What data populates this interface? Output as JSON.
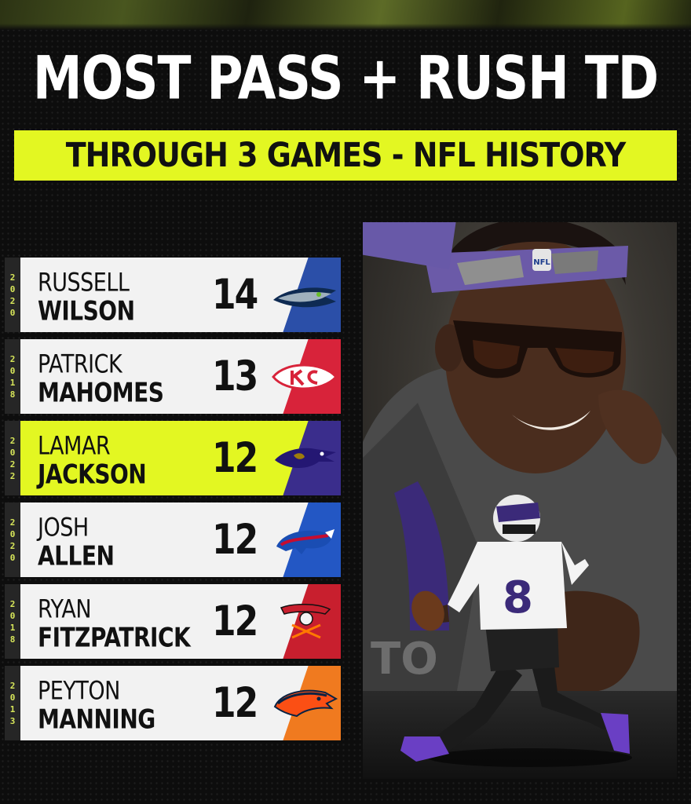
{
  "header": {
    "title": "MOST PASS + RUSH TD",
    "subtitle": "THROUGH 3 GAMES - NFL HISTORY"
  },
  "colors": {
    "accent": "#e3f722",
    "background": "#0d0d0d",
    "row": "#f2f2f2"
  },
  "players": [
    {
      "year": [
        "2",
        "0",
        "2",
        "0"
      ],
      "first": "RUSSELL",
      "last": "WILSON",
      "td": "14",
      "team_icon": "seahawks-logo-icon",
      "tab_color": "#2b4fa8"
    },
    {
      "year": [
        "2",
        "0",
        "1",
        "8"
      ],
      "first": "PATRICK",
      "last": "MAHOMES",
      "td": "13",
      "team_icon": "chiefs-logo-icon",
      "tab_color": "#d8233a"
    },
    {
      "year": [
        "2",
        "0",
        "2",
        "2"
      ],
      "first": "LAMAR",
      "last": "JACKSON",
      "td": "12",
      "team_icon": "ravens-logo-icon",
      "tab_color": "#3a2d8c"
    },
    {
      "year": [
        "2",
        "0",
        "2",
        "0"
      ],
      "first": "JOSH",
      "last": "ALLEN",
      "td": "12",
      "team_icon": "bills-logo-icon",
      "tab_color": "#2357c4"
    },
    {
      "year": [
        "2",
        "0",
        "1",
        "8"
      ],
      "first": "RYAN",
      "last": "FITZPATRICK",
      "td": "12",
      "team_icon": "buccaneers-logo-icon",
      "tab_color": "#c81f2e"
    },
    {
      "year": [
        "2",
        "0",
        "1",
        "3"
      ],
      "first": "PEYTON",
      "last": "MANNING",
      "td": "12",
      "team_icon": "broncos-logo-icon",
      "tab_color": "#f07a1f"
    }
  ],
  "photo": {
    "headband_text": "NFL",
    "jersey_number": "8"
  }
}
